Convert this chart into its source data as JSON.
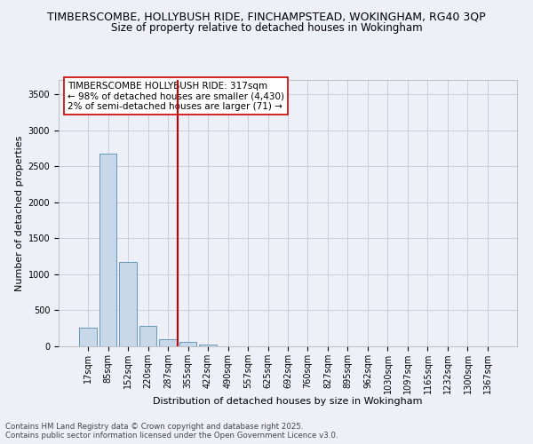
{
  "title_line1": "TIMBERSCOMBE, HOLLYBUSH RIDE, FINCHAMPSTEAD, WOKINGHAM, RG40 3QP",
  "title_line2": "Size of property relative to detached houses in Wokingham",
  "xlabel": "Distribution of detached houses by size in Wokingham",
  "ylabel": "Number of detached properties",
  "categories": [
    "17sqm",
    "85sqm",
    "152sqm",
    "220sqm",
    "287sqm",
    "355sqm",
    "422sqm",
    "490sqm",
    "557sqm",
    "625sqm",
    "692sqm",
    "760sqm",
    "827sqm",
    "895sqm",
    "962sqm",
    "1030sqm",
    "1097sqm",
    "1165sqm",
    "1232sqm",
    "1300sqm",
    "1367sqm"
  ],
  "values": [
    255,
    2680,
    1170,
    285,
    95,
    65,
    30,
    0,
    0,
    0,
    0,
    0,
    0,
    0,
    0,
    0,
    0,
    0,
    0,
    0,
    0
  ],
  "bar_color": "#c8d8e8",
  "bar_edge_color": "#6699bb",
  "grid_color": "#ccccdd",
  "background_color": "#eef0f8",
  "annotation_text": "TIMBERSCOMBE HOLLYBUSH RIDE: 317sqm\n← 98% of detached houses are smaller (4,430)\n2% of semi-detached houses are larger (71) →",
  "vline_color": "#cc0000",
  "annotation_box_color": "#ffffff",
  "annotation_border_color": "#cc0000",
  "ylim": [
    0,
    3700
  ],
  "yticks": [
    0,
    500,
    1000,
    1500,
    2000,
    2500,
    3000,
    3500
  ],
  "footer_text": "Contains HM Land Registry data © Crown copyright and database right 2025.\nContains public sector information licensed under the Open Government Licence v3.0.",
  "title_fontsize": 9,
  "subtitle_fontsize": 8.5,
  "axis_label_fontsize": 8,
  "tick_fontsize": 7,
  "annotation_fontsize": 7.5
}
